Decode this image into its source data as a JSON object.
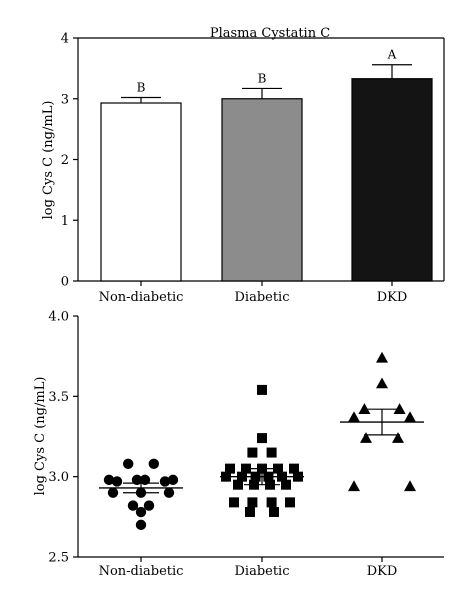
{
  "chart_data": [
    {
      "type": "bar",
      "title": "Plasma Cystatin C",
      "xlabel": "",
      "ylabel": "log Cys C (ng/mL)",
      "categories": [
        "Non-diabetic",
        "Diabetic",
        "DKD"
      ],
      "values": [
        2.93,
        3.0,
        3.33
      ],
      "errors": [
        0.09,
        0.17,
        0.23
      ],
      "significance_labels": [
        "B",
        "B",
        "A"
      ],
      "colors": [
        "#ffffff",
        "#8c8c8c",
        "#141414"
      ],
      "ylim": [
        0,
        4
      ],
      "yticks": [
        "0",
        "1",
        "2",
        "3",
        "4"
      ],
      "grid": false
    },
    {
      "type": "scatter",
      "title": "",
      "xlabel": "",
      "ylabel": "log Cys C (ng/mL)",
      "categories": [
        "Non-diabetic",
        "Diabetic",
        "DKD"
      ],
      "ylim": [
        2.5,
        4.0
      ],
      "yticks": [
        "2.5",
        "3.0",
        "3.5",
        "4.0"
      ],
      "grid": false,
      "series": [
        {
          "marker": "circle",
          "means": 2.93,
          "sem": 0.03,
          "points": [
            {
              "x": -0.16,
              "y": 3.08
            },
            {
              "x": 0.16,
              "y": 3.08
            },
            {
              "x": -0.4,
              "y": 2.98
            },
            {
              "x": -0.05,
              "y": 2.98
            },
            {
              "x": 0.05,
              "y": 2.98
            },
            {
              "x": 0.4,
              "y": 2.98
            },
            {
              "x": -0.3,
              "y": 2.97
            },
            {
              "x": 0.3,
              "y": 2.97
            },
            {
              "x": -0.35,
              "y": 2.9
            },
            {
              "x": 0.0,
              "y": 2.9
            },
            {
              "x": 0.35,
              "y": 2.9
            },
            {
              "x": -0.1,
              "y": 2.82
            },
            {
              "x": 0.1,
              "y": 2.82
            },
            {
              "x": 0.0,
              "y": 2.78
            },
            {
              "x": 0.0,
              "y": 2.7
            }
          ]
        },
        {
          "marker": "square",
          "means": 3.0,
          "sem": 0.05,
          "points": [
            {
              "x": 0.0,
              "y": 3.54
            },
            {
              "x": 0.0,
              "y": 3.24
            },
            {
              "x": -0.12,
              "y": 3.15
            },
            {
              "x": 0.12,
              "y": 3.15
            },
            {
              "x": -0.4,
              "y": 3.05
            },
            {
              "x": -0.2,
              "y": 3.05
            },
            {
              "x": 0.0,
              "y": 3.05
            },
            {
              "x": 0.2,
              "y": 3.05
            },
            {
              "x": 0.4,
              "y": 3.05
            },
            {
              "x": -0.45,
              "y": 3.0
            },
            {
              "x": -0.25,
              "y": 3.0
            },
            {
              "x": -0.08,
              "y": 3.0
            },
            {
              "x": 0.08,
              "y": 3.0
            },
            {
              "x": 0.25,
              "y": 3.0
            },
            {
              "x": 0.45,
              "y": 3.0
            },
            {
              "x": -0.3,
              "y": 2.95
            },
            {
              "x": -0.1,
              "y": 2.95
            },
            {
              "x": 0.1,
              "y": 2.95
            },
            {
              "x": 0.3,
              "y": 2.95
            },
            {
              "x": -0.35,
              "y": 2.84
            },
            {
              "x": -0.12,
              "y": 2.84
            },
            {
              "x": 0.12,
              "y": 2.84
            },
            {
              "x": 0.35,
              "y": 2.84
            },
            {
              "x": -0.15,
              "y": 2.78
            },
            {
              "x": 0.15,
              "y": 2.78
            }
          ]
        },
        {
          "marker": "triangle",
          "means": 3.34,
          "sem": 0.08,
          "points": [
            {
              "x": 0.0,
              "y": 3.74
            },
            {
              "x": 0.0,
              "y": 3.58
            },
            {
              "x": -0.22,
              "y": 3.42
            },
            {
              "x": 0.22,
              "y": 3.42
            },
            {
              "x": -0.35,
              "y": 3.37
            },
            {
              "x": 0.35,
              "y": 3.37
            },
            {
              "x": -0.2,
              "y": 3.24
            },
            {
              "x": 0.2,
              "y": 3.24
            },
            {
              "x": -0.35,
              "y": 2.94
            },
            {
              "x": 0.35,
              "y": 2.94
            }
          ]
        }
      ]
    }
  ]
}
